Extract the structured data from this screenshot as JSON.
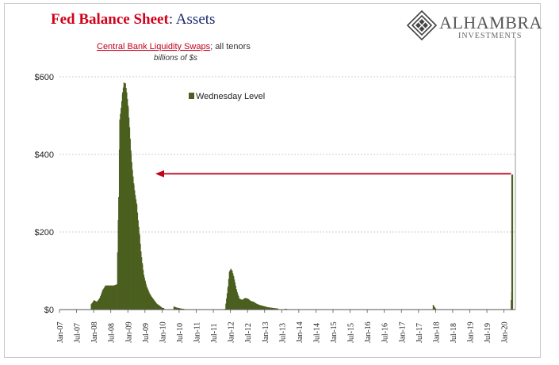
{
  "header": {
    "title_part1": "Fed Balance Sheet",
    "title_part2": ": Assets"
  },
  "logo": {
    "name": "ALHAMBRA",
    "subtitle": "INVESTMENTS",
    "icon": "diamond-lattice-icon"
  },
  "colors": {
    "bars": "#4b5f1f",
    "arrow": "#c0001a",
    "title_red": "#d0021b",
    "title_blue": "#1b2a6b",
    "grid": "#bdbdbd"
  },
  "chart_data": {
    "type": "bar",
    "title": "Central Bank Liquidity Swaps",
    "title_suffix": "; all tenors",
    "subtitle": "billions of $s",
    "legend": [
      "Wednesday Level"
    ],
    "legend_position": "top-center",
    "xlabel": "",
    "ylabel": "",
    "ylim": [
      0,
      700
    ],
    "yticks": [
      0,
      200,
      400,
      600
    ],
    "ytick_labels": [
      "$0",
      "$200",
      "$400",
      "$600"
    ],
    "grid": true,
    "x_range": [
      "2007-01",
      "2020-05"
    ],
    "xtick_labels": [
      "Jan-07",
      "Jul-07",
      "Jan-08",
      "Jul-08",
      "Jan-09",
      "Jul-09",
      "Jan-10",
      "Jul-10",
      "Jan-11",
      "Jul-11",
      "Jan-12",
      "Jul-12",
      "Jan-13",
      "Jul-13",
      "Jan-14",
      "Jul-14",
      "Jan-15",
      "Jul-15",
      "Jan-16",
      "Jul-16",
      "Jan-17",
      "Jul-17",
      "Jan-18",
      "Jul-18",
      "Jan-19",
      "Jul-19",
      "Jan-20"
    ],
    "series": [
      {
        "name": "Wednesday Level",
        "points": [
          [
            "2007-12",
            14
          ],
          [
            "2008-01",
            24
          ],
          [
            "2008-02",
            20
          ],
          [
            "2008-03",
            30
          ],
          [
            "2008-04",
            50
          ],
          [
            "2008-05",
            62
          ],
          [
            "2008-06",
            62
          ],
          [
            "2008-07",
            62
          ],
          [
            "2008-08",
            62
          ],
          [
            "2008-09",
            65
          ],
          [
            "2008-09-20",
            290
          ],
          [
            "2008-10",
            490
          ],
          [
            "2008-10-15",
            520
          ],
          [
            "2008-11",
            560
          ],
          [
            "2008-11-15",
            585
          ],
          [
            "2008-12",
            583
          ],
          [
            "2008-12-15",
            560
          ],
          [
            "2009-01",
            520
          ],
          [
            "2009-01-15",
            470
          ],
          [
            "2009-02",
            400
          ],
          [
            "2009-02-15",
            360
          ],
          [
            "2009-03",
            320
          ],
          [
            "2009-03-15",
            295
          ],
          [
            "2009-04",
            270
          ],
          [
            "2009-04-15",
            230
          ],
          [
            "2009-05",
            190
          ],
          [
            "2009-05-15",
            150
          ],
          [
            "2009-06",
            115
          ],
          [
            "2009-06-15",
            90
          ],
          [
            "2009-07",
            72
          ],
          [
            "2009-07-15",
            60
          ],
          [
            "2009-08",
            50
          ],
          [
            "2009-08-15",
            42
          ],
          [
            "2009-09",
            35
          ],
          [
            "2009-10",
            25
          ],
          [
            "2009-11",
            15
          ],
          [
            "2009-12",
            10
          ],
          [
            "2010-01",
            4
          ],
          [
            "2010-05",
            8
          ],
          [
            "2010-06",
            5
          ],
          [
            "2010-08",
            2
          ],
          [
            "2010-12",
            1
          ],
          [
            "2011-06",
            1
          ],
          [
            "2011-11",
            2
          ],
          [
            "2011-12",
            60
          ],
          [
            "2011-12-15",
            98
          ],
          [
            "2012-01",
            105
          ],
          [
            "2012-01-15",
            100
          ],
          [
            "2012-02",
            85
          ],
          [
            "2012-02-15",
            70
          ],
          [
            "2012-03",
            50
          ],
          [
            "2012-04",
            28
          ],
          [
            "2012-05",
            25
          ],
          [
            "2012-06",
            30
          ],
          [
            "2012-07",
            28
          ],
          [
            "2012-08",
            22
          ],
          [
            "2012-09",
            20
          ],
          [
            "2012-10",
            15
          ],
          [
            "2012-11",
            12
          ],
          [
            "2012-12",
            10
          ],
          [
            "2013-01",
            8
          ],
          [
            "2013-02",
            6
          ],
          [
            "2013-03",
            5
          ],
          [
            "2013-05",
            3
          ],
          [
            "2013-08",
            2
          ],
          [
            "2014-01",
            1
          ],
          [
            "2014-07",
            1
          ],
          [
            "2015-01",
            1
          ],
          [
            "2016-01",
            1
          ],
          [
            "2017-01",
            1
          ],
          [
            "2017-12",
            12
          ],
          [
            "2018-01",
            1
          ],
          [
            "2019-01",
            1
          ],
          [
            "2020-03-05",
            1
          ],
          [
            "2020-03-18",
            45
          ],
          [
            "2020-03-25",
            206
          ],
          [
            "2020-04-01",
            348
          ]
        ]
      }
    ],
    "annotations": [
      {
        "type": "arrow",
        "from_date": "2020-04-01",
        "to_date": "2009-09",
        "value": 350
      }
    ]
  }
}
